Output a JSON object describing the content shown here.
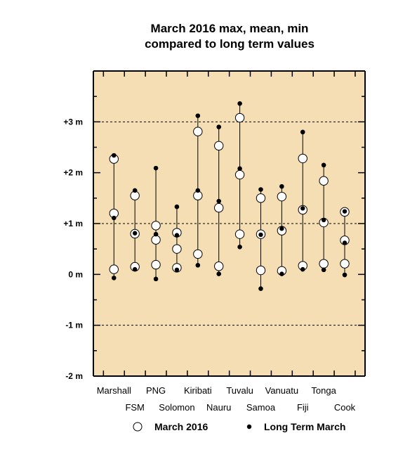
{
  "colors": {
    "plot_background": "#f5deb3",
    "axis": "#000000",
    "grid": "#000000",
    "march_marker_fill": "#ffffff",
    "long_term_marker_fill": "#000000"
  },
  "chart_data": {
    "type": "scatter",
    "title": [
      "March 2016 max, mean, min",
      "compared to long term values"
    ],
    "xlabel": "",
    "ylabel": "",
    "ylim": [
      -2,
      4
    ],
    "yticks": [
      {
        "value": 3,
        "label": "+3 m"
      },
      {
        "value": 2,
        "label": "+2 m"
      },
      {
        "value": 1,
        "label": "+1 m"
      },
      {
        "value": 0,
        "label": "0 m"
      },
      {
        "value": -1,
        "label": "-1 m"
      },
      {
        "value": -2,
        "label": "-2 m"
      }
    ],
    "grid": "dashed horizontal lines at +3, +1 and -1 m",
    "categories": [
      "Marshall",
      "FSM",
      "PNG",
      "Solomon",
      "Kiribati",
      "Nauru",
      "Tuvalu",
      "Samoa",
      "Vanuatu",
      "Fiji",
      "Tonga",
      "Cook"
    ],
    "label_rows": [
      0,
      1,
      0,
      1,
      0,
      1,
      0,
      1,
      0,
      1,
      0,
      1
    ],
    "series": [
      {
        "name": "March 2016",
        "marker": "open-circle",
        "max": [
          2.27,
          1.55,
          0.96,
          0.82,
          2.81,
          2.53,
          3.08,
          1.5,
          1.53,
          2.28,
          1.84,
          1.23
        ],
        "mean": [
          1.2,
          0.8,
          0.68,
          0.5,
          1.55,
          1.31,
          1.96,
          0.79,
          0.86,
          1.27,
          1.02,
          0.67
        ],
        "min": [
          0.1,
          0.15,
          0.19,
          0.13,
          0.4,
          0.16,
          0.79,
          0.08,
          0.07,
          0.17,
          0.21,
          0.21
        ]
      },
      {
        "name": "Long Term March",
        "marker": "filled-dot",
        "max": [
          2.34,
          1.65,
          2.09,
          1.33,
          3.12,
          2.9,
          3.36,
          1.67,
          1.73,
          2.8,
          2.15,
          1.24
        ],
        "mean": [
          1.11,
          0.81,
          0.79,
          0.77,
          1.65,
          1.44,
          2.08,
          0.78,
          0.9,
          1.3,
          1.07,
          0.62
        ],
        "min": [
          -0.07,
          0.1,
          -0.09,
          0.09,
          0.18,
          0.01,
          0.54,
          -0.28,
          0.01,
          0.1,
          0.09,
          -0.01
        ]
      }
    ],
    "legend": {
      "placement": "bottom",
      "items": [
        "March 2016",
        "Long Term March"
      ]
    }
  }
}
